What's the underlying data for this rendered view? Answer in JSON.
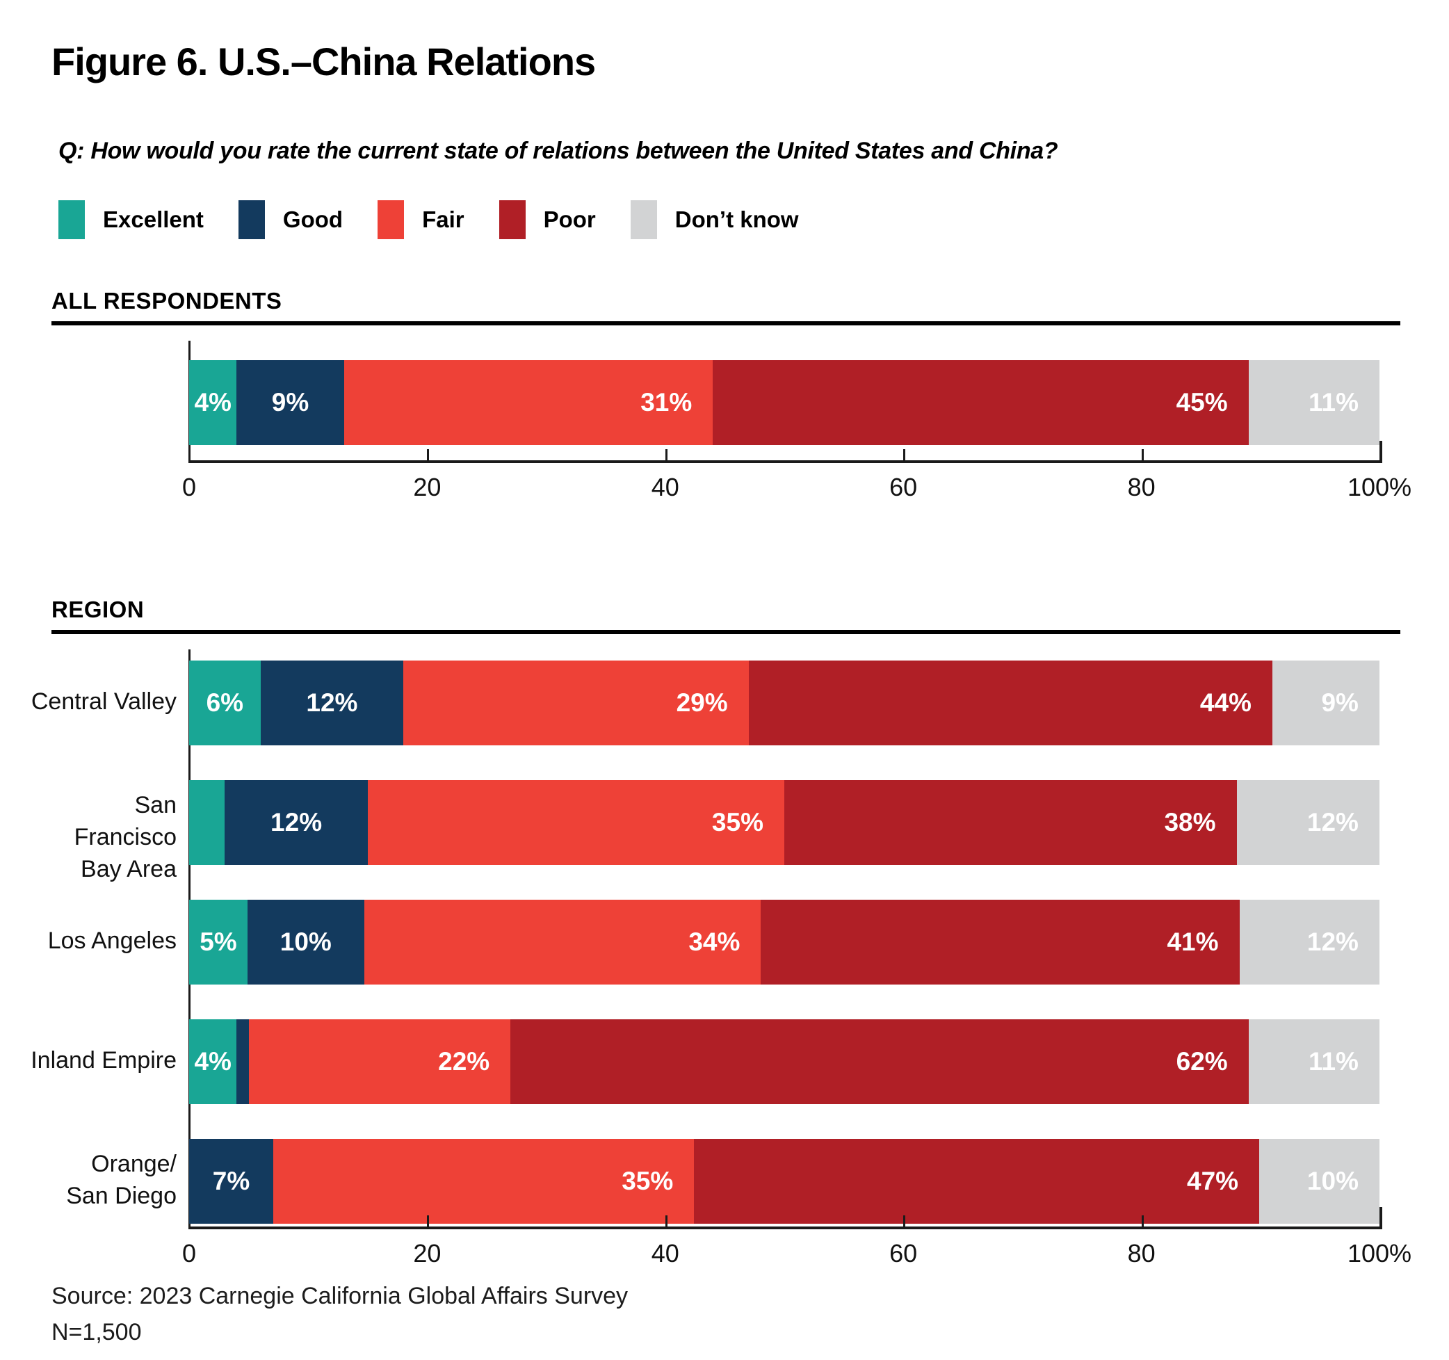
{
  "page": {
    "title": "Figure 6. U.S.–China Relations",
    "question": "Q: How would you rate the current state of relations between the United States and China?",
    "source": "Source: 2023 Carnegie California Global Affairs Survey",
    "n_label": "N=1,500"
  },
  "legend": [
    {
      "label": "Excellent",
      "color": "#19a695"
    },
    {
      "label": "Good",
      "color": "#133a5e"
    },
    {
      "label": "Fair",
      "color": "#ee4137"
    },
    {
      "label": "Poor",
      "color": "#b01f26"
    },
    {
      "label": "Don’t know",
      "color": "#d2d3d4"
    }
  ],
  "chart_data": [
    {
      "type": "bar",
      "orientation": "horizontal",
      "stacked": true,
      "units": "percent",
      "grid": false,
      "group_label": "ALL RESPONDENTS",
      "series_names": [
        "Excellent",
        "Good",
        "Fair",
        "Poor",
        "Don’t know"
      ],
      "rows": [
        {
          "label_lines": [],
          "values": [
            4,
            9,
            31,
            45,
            11
          ],
          "value_labels": [
            "4%",
            "9%",
            "31%",
            "45%",
            "11%"
          ]
        }
      ],
      "xlim": [
        0,
        100
      ],
      "xticklabels": [
        "0",
        "20",
        "40",
        "60",
        "80",
        "100%"
      ]
    },
    {
      "type": "bar",
      "orientation": "horizontal",
      "stacked": true,
      "units": "percent",
      "grid": false,
      "group_label": "REGION",
      "series_names": [
        "Excellent",
        "Good",
        "Fair",
        "Poor",
        "Don’t know"
      ],
      "rows": [
        {
          "label_lines": [
            "Central Valley"
          ],
          "values": [
            6,
            12,
            29,
            44,
            9
          ],
          "value_labels": [
            "6%",
            "12%",
            "29%",
            "44%",
            "9%"
          ]
        },
        {
          "label_lines": [
            "San Francisco",
            "Bay Area"
          ],
          "values": [
            3,
            12,
            35,
            38,
            12
          ],
          "value_labels": [
            "",
            "12%",
            "35%",
            "38%",
            "12%"
          ]
        },
        {
          "label_lines": [
            "Los Angeles"
          ],
          "values": [
            5,
            10,
            34,
            41,
            12
          ],
          "value_labels": [
            "5%",
            "10%",
            "34%",
            "41%",
            "12%"
          ]
        },
        {
          "label_lines": [
            "Inland Empire"
          ],
          "values": [
            4,
            1,
            22,
            62,
            11
          ],
          "value_labels": [
            "4%",
            "",
            "22%",
            "62%",
            "11%"
          ]
        },
        {
          "label_lines": [
            "Orange/",
            "San Diego"
          ],
          "values": [
            0,
            7,
            35,
            47,
            10
          ],
          "value_labels": [
            "",
            "7%",
            "35%",
            "47%",
            "10%"
          ]
        }
      ],
      "xlim": [
        0,
        100
      ],
      "xticklabels": [
        "0",
        "20",
        "40",
        "60",
        "80",
        "100%"
      ]
    }
  ]
}
